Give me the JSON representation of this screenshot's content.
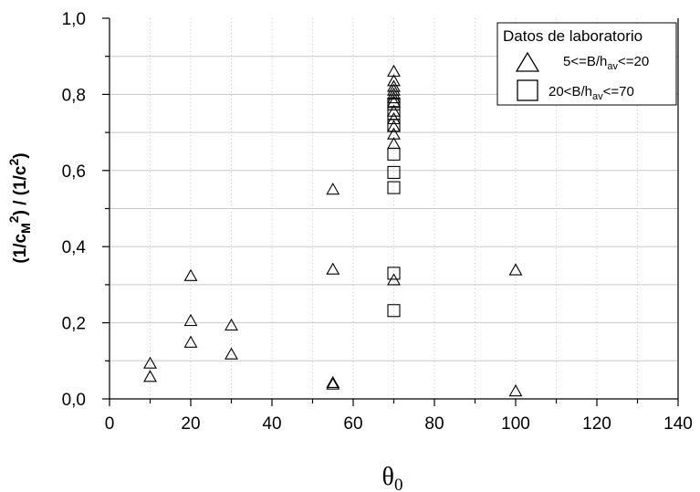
{
  "chart_data": {
    "type": "scatter",
    "xlim": [
      0,
      140
    ],
    "ylim": [
      0,
      1
    ],
    "x_ticks": [
      "0",
      "20",
      "40",
      "60",
      "80",
      "100",
      "120",
      "140"
    ],
    "y_ticks": [
      "0,0",
      "0,2",
      "0,4",
      "0,6",
      "0,8",
      "1,0"
    ],
    "grid": "vertical dotted every 10, horizontal every 0.1",
    "xlabel": {
      "main": "θ",
      "sub": "0"
    },
    "ylabel": {
      "p1": "(1/c",
      "sub1": "M",
      "sup1": "2",
      "p2": ") / (1/c",
      "sup2": "2",
      "p3": ")"
    },
    "legend": {
      "title": "Datos de laboratorio",
      "placement": "top-right",
      "entries": [
        {
          "marker": "triangle",
          "pre": "5<=B/h",
          "sub": "av",
          "post": "<=20"
        },
        {
          "marker": "square",
          "pre": "20<B/h",
          "sub": "av",
          "post": "<=70"
        }
      ]
    },
    "series": [
      {
        "marker": "triangle",
        "points": [
          [
            10,
            0.093
          ],
          [
            10,
            0.058
          ],
          [
            20,
            0.323
          ],
          [
            20,
            0.205
          ],
          [
            20,
            0.148
          ],
          [
            30,
            0.193
          ],
          [
            30,
            0.117
          ],
          [
            55,
            0.55
          ],
          [
            55,
            0.34
          ],
          [
            55,
            0.042
          ],
          [
            55,
            0.038
          ],
          [
            70,
            0.86
          ],
          [
            70,
            0.835
          ],
          [
            70,
            0.82
          ],
          [
            70,
            0.81
          ],
          [
            70,
            0.8
          ],
          [
            70,
            0.79
          ],
          [
            70,
            0.78
          ],
          [
            70,
            0.755
          ],
          [
            70,
            0.735
          ],
          [
            70,
            0.715
          ],
          [
            70,
            0.695
          ],
          [
            70,
            0.67
          ],
          [
            70,
            0.312
          ],
          [
            100,
            0.338
          ],
          [
            100,
            0.02
          ]
        ]
      },
      {
        "marker": "square",
        "points": [
          [
            70,
            0.775
          ],
          [
            70,
            0.75
          ],
          [
            70,
            0.718
          ],
          [
            70,
            0.643
          ],
          [
            70,
            0.595
          ],
          [
            70,
            0.555
          ],
          [
            70,
            0.33
          ],
          [
            70,
            0.232
          ]
        ]
      }
    ]
  }
}
